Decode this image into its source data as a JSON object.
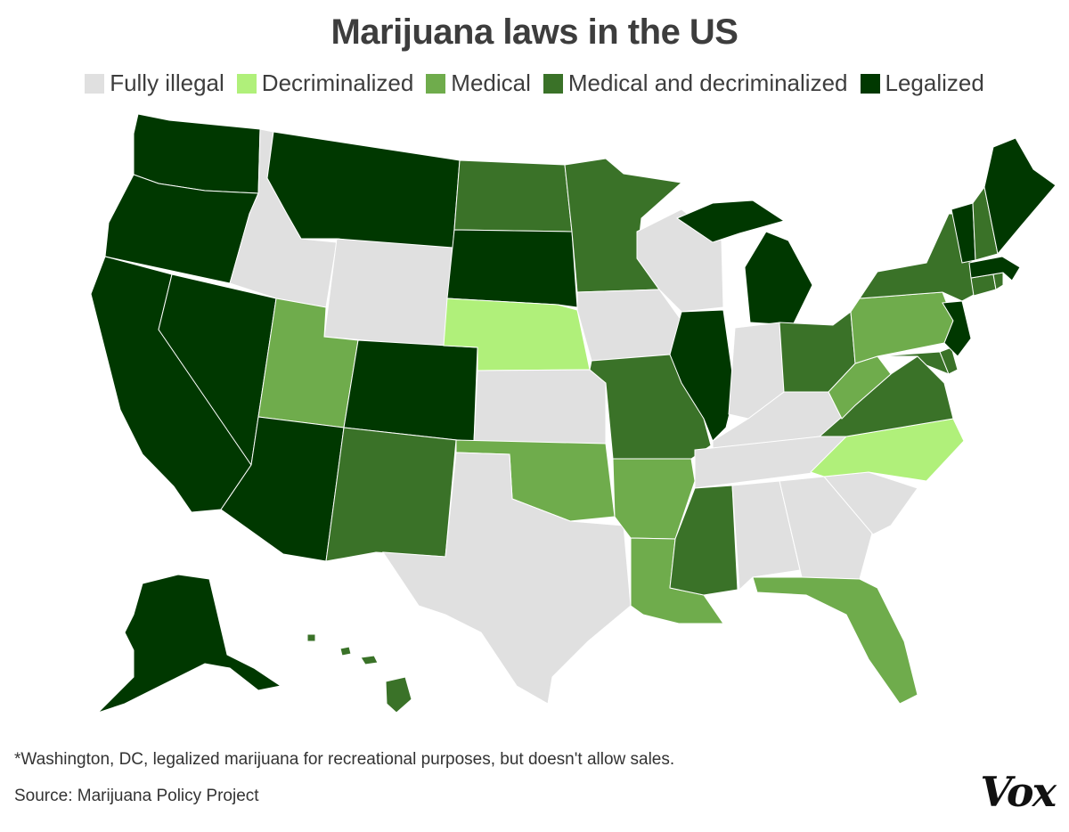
{
  "title": "Marijuana laws in the US",
  "legend": [
    {
      "label": "Fully illegal",
      "color": "#e0e0e0"
    },
    {
      "label": "Decriminalized",
      "color": "#b0f07a"
    },
    {
      "label": "Medical",
      "color": "#6fac4c"
    },
    {
      "label": "Medical and decriminalized",
      "color": "#3a7228"
    },
    {
      "label": "Legalized",
      "color": "#003800"
    }
  ],
  "states": {
    "legalized": [
      "Washington",
      "Oregon",
      "California",
      "Nevada",
      "Arizona",
      "Alaska",
      "Montana",
      "Colorado",
      "South Dakota",
      "Michigan",
      "Illinois",
      "Maine",
      "Vermont",
      "Massachusetts",
      "New Jersey"
    ],
    "medical_and_decriminalized": [
      "North Dakota",
      "Minnesota",
      "New Mexico",
      "Missouri",
      "Mississippi",
      "Ohio",
      "New York",
      "New Hampshire",
      "Connecticut",
      "Rhode Island",
      "Virginia",
      "Maryland",
      "Delaware",
      "Hawaii"
    ],
    "medical": [
      "Utah",
      "Oklahoma",
      "Arkansas",
      "Louisiana",
      "Florida",
      "Pennsylvania",
      "West Virginia"
    ],
    "decriminalized": [
      "Nebraska",
      "North Carolina"
    ],
    "fully_illegal": [
      "Idaho",
      "Wyoming",
      "Kansas",
      "Texas",
      "Iowa",
      "Wisconsin",
      "Indiana",
      "Kentucky",
      "Tennessee",
      "Alabama",
      "Georgia",
      "South Carolina"
    ]
  },
  "footnote": "*Washington, DC, legalized marijuana for recreational purposes, but doesn't allow sales.",
  "source": "Source: Marijuana Policy Project",
  "logo": "Vox"
}
